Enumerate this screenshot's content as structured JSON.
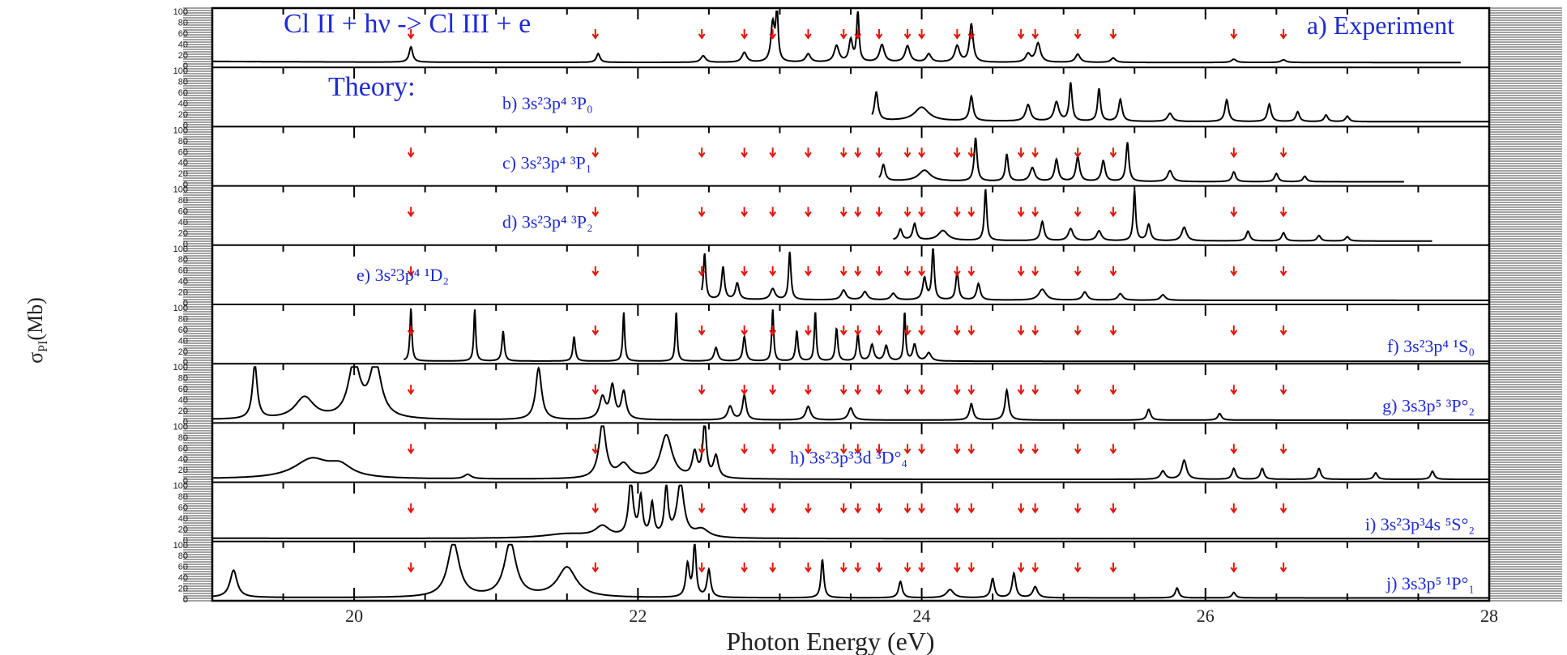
{
  "chart_data": {
    "type": "line",
    "title": "Cl II + hν -> Cl III + e",
    "xlabel": "Photon Energy (eV)",
    "ylabel": "σ",
    "ylabel_sub": "PI",
    "ylabel_unit": "(Mb)",
    "xlim": [
      19.0,
      28.0
    ],
    "ylim": [
      0,
      100
    ],
    "x_ticks": [
      20,
      22,
      24,
      26,
      28
    ],
    "y_tick_labels": [
      "0",
      "20",
      "40",
      "60",
      "80",
      "100"
    ],
    "arrow_color": "#e8120c",
    "text_color": "#1e2ad6",
    "resonance_positions": [
      20.4,
      21.7,
      22.45,
      22.75,
      22.95,
      23.2,
      23.45,
      23.55,
      23.7,
      23.9,
      24.0,
      24.25,
      24.35,
      24.7,
      24.8,
      25.1,
      25.35,
      26.2,
      26.55
    ],
    "theory_label": "Theory:",
    "panels": [
      {
        "label": "a) Experiment",
        "label_pos": "top-right",
        "arrows": true,
        "x_range": [
          19.0,
          27.8
        ],
        "baseline": 8,
        "peaks": [
          [
            20.4,
            28,
            0.015
          ],
          [
            21.72,
            16,
            0.015
          ],
          [
            22.46,
            12,
            0.02
          ],
          [
            22.75,
            18,
            0.02
          ],
          [
            22.95,
            70,
            0.015
          ],
          [
            22.98,
            92,
            0.01
          ],
          [
            23.2,
            15,
            0.02
          ],
          [
            23.4,
            30,
            0.02
          ],
          [
            23.5,
            40,
            0.015
          ],
          [
            23.55,
            92,
            0.01
          ],
          [
            23.72,
            32,
            0.02
          ],
          [
            23.9,
            30,
            0.02
          ],
          [
            24.05,
            15,
            0.02
          ],
          [
            24.25,
            30,
            0.02
          ],
          [
            24.35,
            70,
            0.015
          ],
          [
            24.75,
            15,
            0.02
          ],
          [
            24.82,
            35,
            0.02
          ],
          [
            25.1,
            15,
            0.02
          ],
          [
            25.35,
            8,
            0.02
          ],
          [
            26.2,
            6,
            0.02
          ],
          [
            26.55,
            5,
            0.02
          ]
        ]
      },
      {
        "label": "b) 3s²3p⁴ ³P₀",
        "label_pos": "top-center",
        "arrows": false,
        "x_range": [
          23.65,
          28.0
        ],
        "baseline": 8,
        "peaks": [
          [
            23.68,
            52,
            0.015
          ],
          [
            24.0,
            25,
            0.06
          ],
          [
            24.35,
            45,
            0.015
          ],
          [
            24.75,
            30,
            0.02
          ],
          [
            24.95,
            35,
            0.02
          ],
          [
            25.05,
            70,
            0.012
          ],
          [
            25.25,
            60,
            0.012
          ],
          [
            25.4,
            40,
            0.015
          ],
          [
            25.75,
            15,
            0.02
          ],
          [
            26.15,
            40,
            0.015
          ],
          [
            26.45,
            32,
            0.015
          ],
          [
            26.65,
            18,
            0.015
          ],
          [
            26.85,
            12,
            0.015
          ],
          [
            27.0,
            10,
            0.015
          ]
        ]
      },
      {
        "label": "c) 3s²3p⁴ ³P₁",
        "label_pos": "top-center",
        "arrows": true,
        "x_range": [
          23.7,
          27.4
        ],
        "baseline": 6,
        "peaks": [
          [
            23.73,
            30,
            0.015
          ],
          [
            24.02,
            20,
            0.05
          ],
          [
            24.38,
            80,
            0.012
          ],
          [
            24.6,
            50,
            0.012
          ],
          [
            24.78,
            25,
            0.02
          ],
          [
            24.95,
            40,
            0.015
          ],
          [
            25.1,
            45,
            0.015
          ],
          [
            25.28,
            38,
            0.015
          ],
          [
            25.45,
            72,
            0.012
          ],
          [
            25.75,
            20,
            0.02
          ],
          [
            26.2,
            18,
            0.015
          ],
          [
            26.5,
            15,
            0.015
          ],
          [
            26.7,
            10,
            0.015
          ]
        ]
      },
      {
        "label": "d) 3s²3p⁴ ³P₂",
        "label_pos": "top-center",
        "arrows": true,
        "x_range": [
          23.8,
          27.6
        ],
        "baseline": 6,
        "peaks": [
          [
            23.85,
            20,
            0.015
          ],
          [
            23.95,
            30,
            0.015
          ],
          [
            24.15,
            18,
            0.04
          ],
          [
            24.45,
            95,
            0.01
          ],
          [
            24.85,
            35,
            0.015
          ],
          [
            25.05,
            22,
            0.02
          ],
          [
            25.25,
            18,
            0.02
          ],
          [
            25.5,
            92,
            0.01
          ],
          [
            25.6,
            30,
            0.015
          ],
          [
            25.85,
            25,
            0.02
          ],
          [
            26.3,
            18,
            0.015
          ],
          [
            26.55,
            15,
            0.015
          ],
          [
            26.8,
            10,
            0.015
          ],
          [
            27.0,
            8,
            0.015
          ]
        ]
      },
      {
        "label": "e) 3s²3p⁴ ¹D₂",
        "label_pos": "top-left",
        "arrows": true,
        "x_range": [
          22.45,
          28.0
        ],
        "baseline": 6,
        "peaks": [
          [
            22.47,
            85,
            0.01
          ],
          [
            22.6,
            60,
            0.012
          ],
          [
            22.7,
            30,
            0.015
          ],
          [
            22.95,
            20,
            0.02
          ],
          [
            23.07,
            88,
            0.01
          ],
          [
            23.45,
            18,
            0.02
          ],
          [
            23.6,
            15,
            0.02
          ],
          [
            23.8,
            12,
            0.02
          ],
          [
            24.02,
            40,
            0.015
          ],
          [
            24.08,
            95,
            0.01
          ],
          [
            24.25,
            50,
            0.012
          ],
          [
            24.4,
            30,
            0.015
          ],
          [
            24.85,
            20,
            0.03
          ],
          [
            25.15,
            15,
            0.02
          ],
          [
            25.4,
            12,
            0.02
          ],
          [
            25.7,
            10,
            0.02
          ]
        ]
      },
      {
        "label": "f) 3s²3p⁴ ¹S₀",
        "label_pos": "bottom-right",
        "arrows": true,
        "x_range": [
          20.35,
          28.0
        ],
        "baseline": 2,
        "peaks": [
          [
            20.4,
            98,
            0.008
          ],
          [
            20.85,
            95,
            0.008
          ],
          [
            21.05,
            55,
            0.01
          ],
          [
            21.55,
            45,
            0.01
          ],
          [
            21.9,
            90,
            0.008
          ],
          [
            22.27,
            92,
            0.008
          ],
          [
            22.55,
            25,
            0.015
          ],
          [
            22.75,
            45,
            0.012
          ],
          [
            22.95,
            95,
            0.008
          ],
          [
            23.12,
            55,
            0.01
          ],
          [
            23.25,
            92,
            0.008
          ],
          [
            23.4,
            60,
            0.01
          ],
          [
            23.55,
            50,
            0.01
          ],
          [
            23.65,
            30,
            0.015
          ],
          [
            23.75,
            28,
            0.015
          ],
          [
            23.88,
            90,
            0.008
          ],
          [
            23.95,
            30,
            0.015
          ],
          [
            24.05,
            15,
            0.02
          ]
        ]
      },
      {
        "label": "g) 3s3p⁵ ³P°₂",
        "label_pos": "bottom-right",
        "arrows": true,
        "x_range": [
          19.0,
          28.0
        ],
        "baseline": 3,
        "peaks": [
          [
            19.3,
            100,
            0.02
          ],
          [
            19.65,
            40,
            0.08
          ],
          [
            20.0,
            100,
            0.05
          ],
          [
            20.15,
            100,
            0.05
          ],
          [
            21.3,
            95,
            0.025
          ],
          [
            21.75,
            40,
            0.025
          ],
          [
            21.82,
            60,
            0.02
          ],
          [
            21.9,
            50,
            0.02
          ],
          [
            22.65,
            25,
            0.02
          ],
          [
            22.75,
            45,
            0.015
          ],
          [
            23.2,
            25,
            0.02
          ],
          [
            23.5,
            22,
            0.02
          ],
          [
            24.35,
            30,
            0.015
          ],
          [
            24.6,
            55,
            0.015
          ],
          [
            25.6,
            20,
            0.015
          ],
          [
            26.1,
            12,
            0.015
          ]
        ]
      },
      {
        "label": "h) 3s²3p³3d ³D°₄",
        "label_pos": "center",
        "arrows": true,
        "x_range": [
          19.0,
          28.0
        ],
        "baseline": 3,
        "peaks": [
          [
            19.7,
            35,
            0.15
          ],
          [
            19.9,
            20,
            0.1
          ],
          [
            20.8,
            8,
            0.03
          ],
          [
            21.75,
            100,
            0.03
          ],
          [
            21.9,
            25,
            0.05
          ],
          [
            22.2,
            80,
            0.05
          ],
          [
            22.4,
            45,
            0.02
          ],
          [
            22.47,
            100,
            0.015
          ],
          [
            22.55,
            40,
            0.02
          ],
          [
            25.7,
            15,
            0.02
          ],
          [
            25.85,
            35,
            0.02
          ],
          [
            26.2,
            20,
            0.015
          ],
          [
            26.4,
            20,
            0.015
          ],
          [
            26.8,
            20,
            0.015
          ],
          [
            27.2,
            12,
            0.015
          ],
          [
            27.6,
            15,
            0.015
          ]
        ]
      },
      {
        "label": "i) 3s²3p³4s ⁵S°₂",
        "label_pos": "bottom-right",
        "arrows": true,
        "x_range": [
          19.0,
          28.0
        ],
        "baseline": 3,
        "peaks": [
          [
            21.5,
            8,
            0.2
          ],
          [
            21.75,
            20,
            0.06
          ],
          [
            21.95,
            100,
            0.02
          ],
          [
            22.02,
            70,
            0.015
          ],
          [
            22.1,
            60,
            0.015
          ],
          [
            22.2,
            90,
            0.015
          ],
          [
            22.3,
            100,
            0.03
          ],
          [
            22.45,
            15,
            0.06
          ]
        ]
      },
      {
        "label": "j) 3s3p⁵ ¹P°₁",
        "label_pos": "bottom-right",
        "arrows": true,
        "x_range": [
          19.0,
          28.0
        ],
        "baseline": 3,
        "peaks": [
          [
            19.15,
            50,
            0.03
          ],
          [
            20.7,
            100,
            0.05
          ],
          [
            21.1,
            100,
            0.05
          ],
          [
            21.5,
            55,
            0.08
          ],
          [
            22.35,
            60,
            0.015
          ],
          [
            22.4,
            100,
            0.012
          ],
          [
            22.5,
            50,
            0.015
          ],
          [
            23.3,
            70,
            0.012
          ],
          [
            23.85,
            30,
            0.015
          ],
          [
            24.2,
            15,
            0.03
          ],
          [
            24.5,
            35,
            0.015
          ],
          [
            24.65,
            45,
            0.015
          ],
          [
            24.8,
            20,
            0.02
          ],
          [
            25.8,
            18,
            0.015
          ],
          [
            26.2,
            10,
            0.015
          ]
        ]
      }
    ]
  }
}
